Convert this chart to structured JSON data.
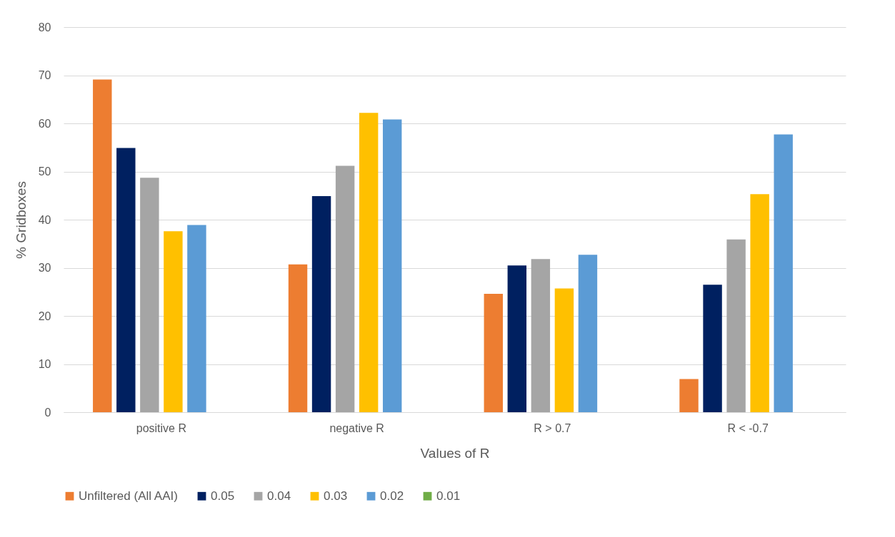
{
  "chart_data": {
    "type": "bar",
    "xlabel": "Values of R",
    "ylabel": "% Gridboxes",
    "categories": [
      "positive R",
      "negative R",
      "R > 0.7",
      "R < -0.7"
    ],
    "series": [
      {
        "name": "Unfiltered (All AAI)",
        "color": "#ed7d31",
        "values": [
          69.1,
          30.7,
          24.6,
          6.9
        ]
      },
      {
        "name": "0.05",
        "color": "#002060",
        "values": [
          54.9,
          44.9,
          30.5,
          26.5
        ]
      },
      {
        "name": "0.04",
        "color": "#a5a5a5",
        "values": [
          48.7,
          51.2,
          31.8,
          35.9
        ]
      },
      {
        "name": "0.03",
        "color": "#ffc000",
        "values": [
          37.6,
          62.2,
          25.7,
          45.3
        ]
      },
      {
        "name": "0.02",
        "color": "#5b9bd5",
        "values": [
          38.9,
          60.8,
          32.7,
          57.7
        ]
      },
      {
        "name": "0.01",
        "color": "#70ad47",
        "values": [
          null,
          null,
          null,
          null
        ]
      }
    ],
    "ylim": [
      0,
      80
    ],
    "yticks": [
      0,
      10,
      20,
      30,
      40,
      50,
      60,
      70,
      80
    ],
    "grid": "y",
    "legend": "bottom"
  }
}
